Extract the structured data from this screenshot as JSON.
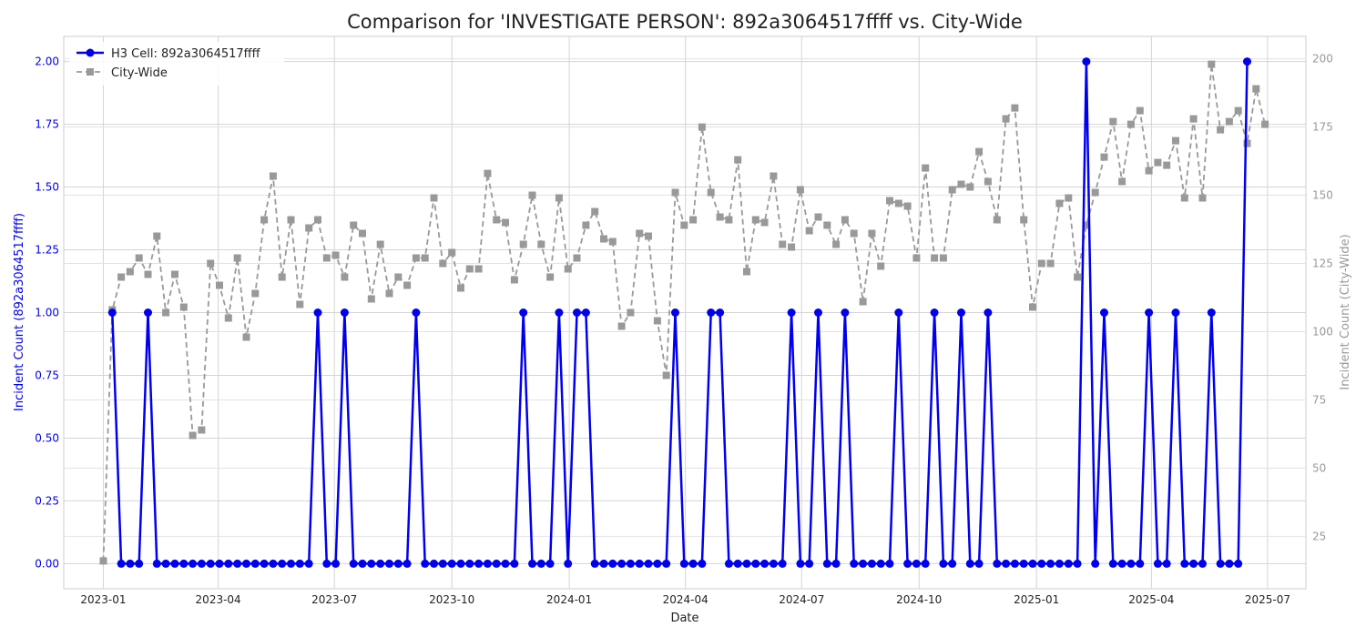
{
  "chart_data": {
    "type": "line",
    "title": "Comparison for 'INVESTIGATE PERSON': 892a3064517ffff vs. City-Wide",
    "xlabel": "Date",
    "ylabel_left": "Incident Count (892a3064517ffff)",
    "ylabel_right": "Incident Count (City-Wide)",
    "x_ticks": [
      "2023-01",
      "2023-04",
      "2023-07",
      "2023-10",
      "2024-01",
      "2024-04",
      "2024-07",
      "2024-10",
      "2025-01",
      "2025-04",
      "2025-07"
    ],
    "y_left_ticks": [
      "0.00",
      "0.25",
      "0.50",
      "0.75",
      "1.00",
      "1.25",
      "1.50",
      "1.75",
      "2.00"
    ],
    "y_right_ticks": [
      "25",
      "50",
      "75",
      "100",
      "125",
      "150",
      "175",
      "200"
    ],
    "ylim_left": [
      -0.1,
      2.1
    ],
    "ylim_right": [
      -0.1,
      2.1
    ],
    "grid": true,
    "legend_position": "top-left",
    "colors": {
      "local": "#0000ee",
      "citywide": "#999999"
    },
    "series": [
      {
        "name": "H3 Cell: 892a3064517ffff",
        "axis": "left",
        "style": "solid-circle",
        "x": [
          "2023-01-08",
          "2023-01-15",
          "2023-01-22",
          "2023-01-29",
          "2023-02-05",
          "2023-02-12",
          "2023-02-19",
          "2023-02-26",
          "2023-03-05",
          "2023-03-12",
          "2023-03-19",
          "2023-03-26",
          "2023-04-02",
          "2023-04-09",
          "2023-04-16",
          "2023-04-23",
          "2023-04-30",
          "2023-05-07",
          "2023-05-14",
          "2023-05-21",
          "2023-05-28",
          "2023-06-04",
          "2023-06-11",
          "2023-06-18",
          "2023-06-25",
          "2023-07-02",
          "2023-07-09",
          "2023-07-16",
          "2023-07-23",
          "2023-07-30",
          "2023-08-06",
          "2023-08-13",
          "2023-08-20",
          "2023-08-27",
          "2023-09-03",
          "2023-09-10",
          "2023-09-17",
          "2023-09-24",
          "2023-10-01",
          "2023-10-08",
          "2023-10-15",
          "2023-10-22",
          "2023-10-29",
          "2023-11-05",
          "2023-11-12",
          "2023-11-19",
          "2023-11-26",
          "2023-12-03",
          "2023-12-10",
          "2023-12-17",
          "2023-12-24",
          "2023-12-31",
          "2024-01-07",
          "2024-01-14",
          "2024-01-21",
          "2024-01-28",
          "2024-02-04",
          "2024-02-11",
          "2024-02-18",
          "2024-02-25",
          "2024-03-03",
          "2024-03-10",
          "2024-03-17",
          "2024-03-24",
          "2024-03-31",
          "2024-04-07",
          "2024-04-14",
          "2024-04-21",
          "2024-04-28",
          "2024-05-05",
          "2024-05-12",
          "2024-05-19",
          "2024-05-26",
          "2024-06-02",
          "2024-06-09",
          "2024-06-16",
          "2024-06-23",
          "2024-06-30",
          "2024-07-07",
          "2024-07-14",
          "2024-07-21",
          "2024-07-28",
          "2024-08-04",
          "2024-08-11",
          "2024-08-18",
          "2024-08-25",
          "2024-09-01",
          "2024-09-08",
          "2024-09-15",
          "2024-09-22",
          "2024-09-29",
          "2024-10-06",
          "2024-10-13",
          "2024-10-20",
          "2024-10-27",
          "2024-11-03",
          "2024-11-10",
          "2024-11-17",
          "2024-11-24",
          "2024-12-01",
          "2024-12-08",
          "2024-12-15",
          "2024-12-22",
          "2024-12-29",
          "2025-01-05",
          "2025-01-12",
          "2025-01-19",
          "2025-01-26",
          "2025-02-02",
          "2025-02-09",
          "2025-02-16",
          "2025-02-23",
          "2025-03-02",
          "2025-03-09",
          "2025-03-16",
          "2025-03-23",
          "2025-03-30",
          "2025-04-06",
          "2025-04-13",
          "2025-04-20",
          "2025-04-27",
          "2025-05-04",
          "2025-05-11",
          "2025-05-18",
          "2025-05-25",
          "2025-06-01",
          "2025-06-08",
          "2025-06-15"
        ],
        "values": [
          1,
          0,
          0,
          0,
          1,
          0,
          0,
          0,
          0,
          0,
          0,
          0,
          0,
          0,
          0,
          0,
          0,
          0,
          0,
          0,
          0,
          0,
          0,
          1,
          0,
          0,
          1,
          0,
          0,
          0,
          0,
          0,
          0,
          0,
          1,
          0,
          0,
          0,
          0,
          0,
          0,
          0,
          0,
          0,
          0,
          0,
          1,
          0,
          0,
          0,
          1,
          0,
          1,
          1,
          0,
          0,
          0,
          0,
          0,
          0,
          0,
          0,
          0,
          1,
          0,
          0,
          0,
          1,
          1,
          0,
          0,
          0,
          0,
          0,
          0,
          0,
          1,
          0,
          0,
          1,
          0,
          0,
          1,
          0,
          0,
          0,
          0,
          0,
          1,
          0,
          0,
          0,
          1,
          0,
          0,
          1,
          0,
          0,
          1,
          0,
          0,
          0,
          0,
          0,
          0,
          0,
          0,
          0,
          0,
          2,
          0,
          1,
          0,
          0,
          0,
          0,
          1,
          0,
          0,
          1,
          0,
          0,
          0,
          1,
          0,
          0,
          0,
          2
        ]
      },
      {
        "name": "City-Wide",
        "axis": "right",
        "style": "dashed-square",
        "x": [
          "2023-01-01",
          "2023-01-08",
          "2023-01-15",
          "2023-01-22",
          "2023-01-29",
          "2023-02-05",
          "2023-02-12",
          "2023-02-19",
          "2023-02-26",
          "2023-03-05",
          "2023-03-12",
          "2023-03-19",
          "2023-03-26",
          "2023-04-02",
          "2023-04-09",
          "2023-04-16",
          "2023-04-23",
          "2023-04-30",
          "2023-05-07",
          "2023-05-14",
          "2023-05-21",
          "2023-05-28",
          "2023-06-04",
          "2023-06-11",
          "2023-06-18",
          "2023-06-25",
          "2023-07-02",
          "2023-07-09",
          "2023-07-16",
          "2023-07-23",
          "2023-07-30",
          "2023-08-06",
          "2023-08-13",
          "2023-08-20",
          "2023-08-27",
          "2023-09-03",
          "2023-09-10",
          "2023-09-17",
          "2023-09-24",
          "2023-10-01",
          "2023-10-08",
          "2023-10-15",
          "2023-10-22",
          "2023-10-29",
          "2023-11-05",
          "2023-11-12",
          "2023-11-19",
          "2023-11-26",
          "2023-12-03",
          "2023-12-10",
          "2023-12-17",
          "2023-12-24",
          "2023-12-31",
          "2024-01-07",
          "2024-01-14",
          "2024-01-21",
          "2024-01-28",
          "2024-02-04",
          "2024-02-11",
          "2024-02-18",
          "2024-02-25",
          "2024-03-03",
          "2024-03-10",
          "2024-03-17",
          "2024-03-24",
          "2024-03-31",
          "2024-04-07",
          "2024-04-14",
          "2024-04-21",
          "2024-04-28",
          "2024-05-05",
          "2024-05-12",
          "2024-05-19",
          "2024-05-26",
          "2024-06-02",
          "2024-06-09",
          "2024-06-16",
          "2024-06-23",
          "2024-06-30",
          "2024-07-07",
          "2024-07-14",
          "2024-07-21",
          "2024-07-28",
          "2024-08-04",
          "2024-08-11",
          "2024-08-18",
          "2024-08-25",
          "2024-09-01",
          "2024-09-08",
          "2024-09-15",
          "2024-09-22",
          "2024-09-29",
          "2024-10-06",
          "2024-10-13",
          "2024-10-20",
          "2024-10-27",
          "2024-11-03",
          "2024-11-10",
          "2024-11-17",
          "2024-11-24",
          "2024-12-01",
          "2024-12-08",
          "2024-12-15",
          "2024-12-22",
          "2024-12-29",
          "2025-01-05",
          "2025-01-12",
          "2025-01-19",
          "2025-01-26",
          "2025-02-02",
          "2025-02-09",
          "2025-02-16",
          "2025-02-23",
          "2025-03-02",
          "2025-03-09",
          "2025-03-16",
          "2025-03-23",
          "2025-03-30",
          "2025-04-06",
          "2025-04-13",
          "2025-04-20",
          "2025-04-27",
          "2025-05-04",
          "2025-05-11",
          "2025-05-18",
          "2025-05-25",
          "2025-06-01",
          "2025-06-08",
          "2025-06-15",
          "2025-06-22",
          "2025-06-29"
        ],
        "values": [
          16,
          108,
          120,
          122,
          127,
          121,
          135,
          107,
          121,
          109,
          62,
          64,
          125,
          117,
          105,
          127,
          98,
          114,
          141,
          157,
          120,
          141,
          110,
          138,
          141,
          127,
          128,
          120,
          139,
          136,
          112,
          132,
          114,
          120,
          117,
          127,
          127,
          149,
          125,
          129,
          116,
          123,
          123,
          158,
          141,
          140,
          119,
          132,
          150,
          132,
          120,
          149,
          123,
          127,
          139,
          144,
          134,
          133,
          102,
          107,
          136,
          135,
          104,
          84,
          151,
          139,
          141,
          175,
          151,
          142,
          141,
          163,
          122,
          141,
          140,
          157,
          132,
          131,
          152,
          137,
          142,
          139,
          132,
          141,
          136,
          111,
          136,
          124,
          148,
          147,
          146,
          127,
          160,
          127,
          127,
          152,
          154,
          153,
          166,
          155,
          141,
          178,
          182,
          141,
          109,
          125,
          125,
          147,
          149,
          120,
          139,
          151,
          164,
          177,
          155,
          176,
          181,
          159,
          162,
          161,
          170,
          149,
          178,
          149,
          198,
          174,
          177,
          181,
          169,
          189,
          176
        ]
      }
    ]
  }
}
